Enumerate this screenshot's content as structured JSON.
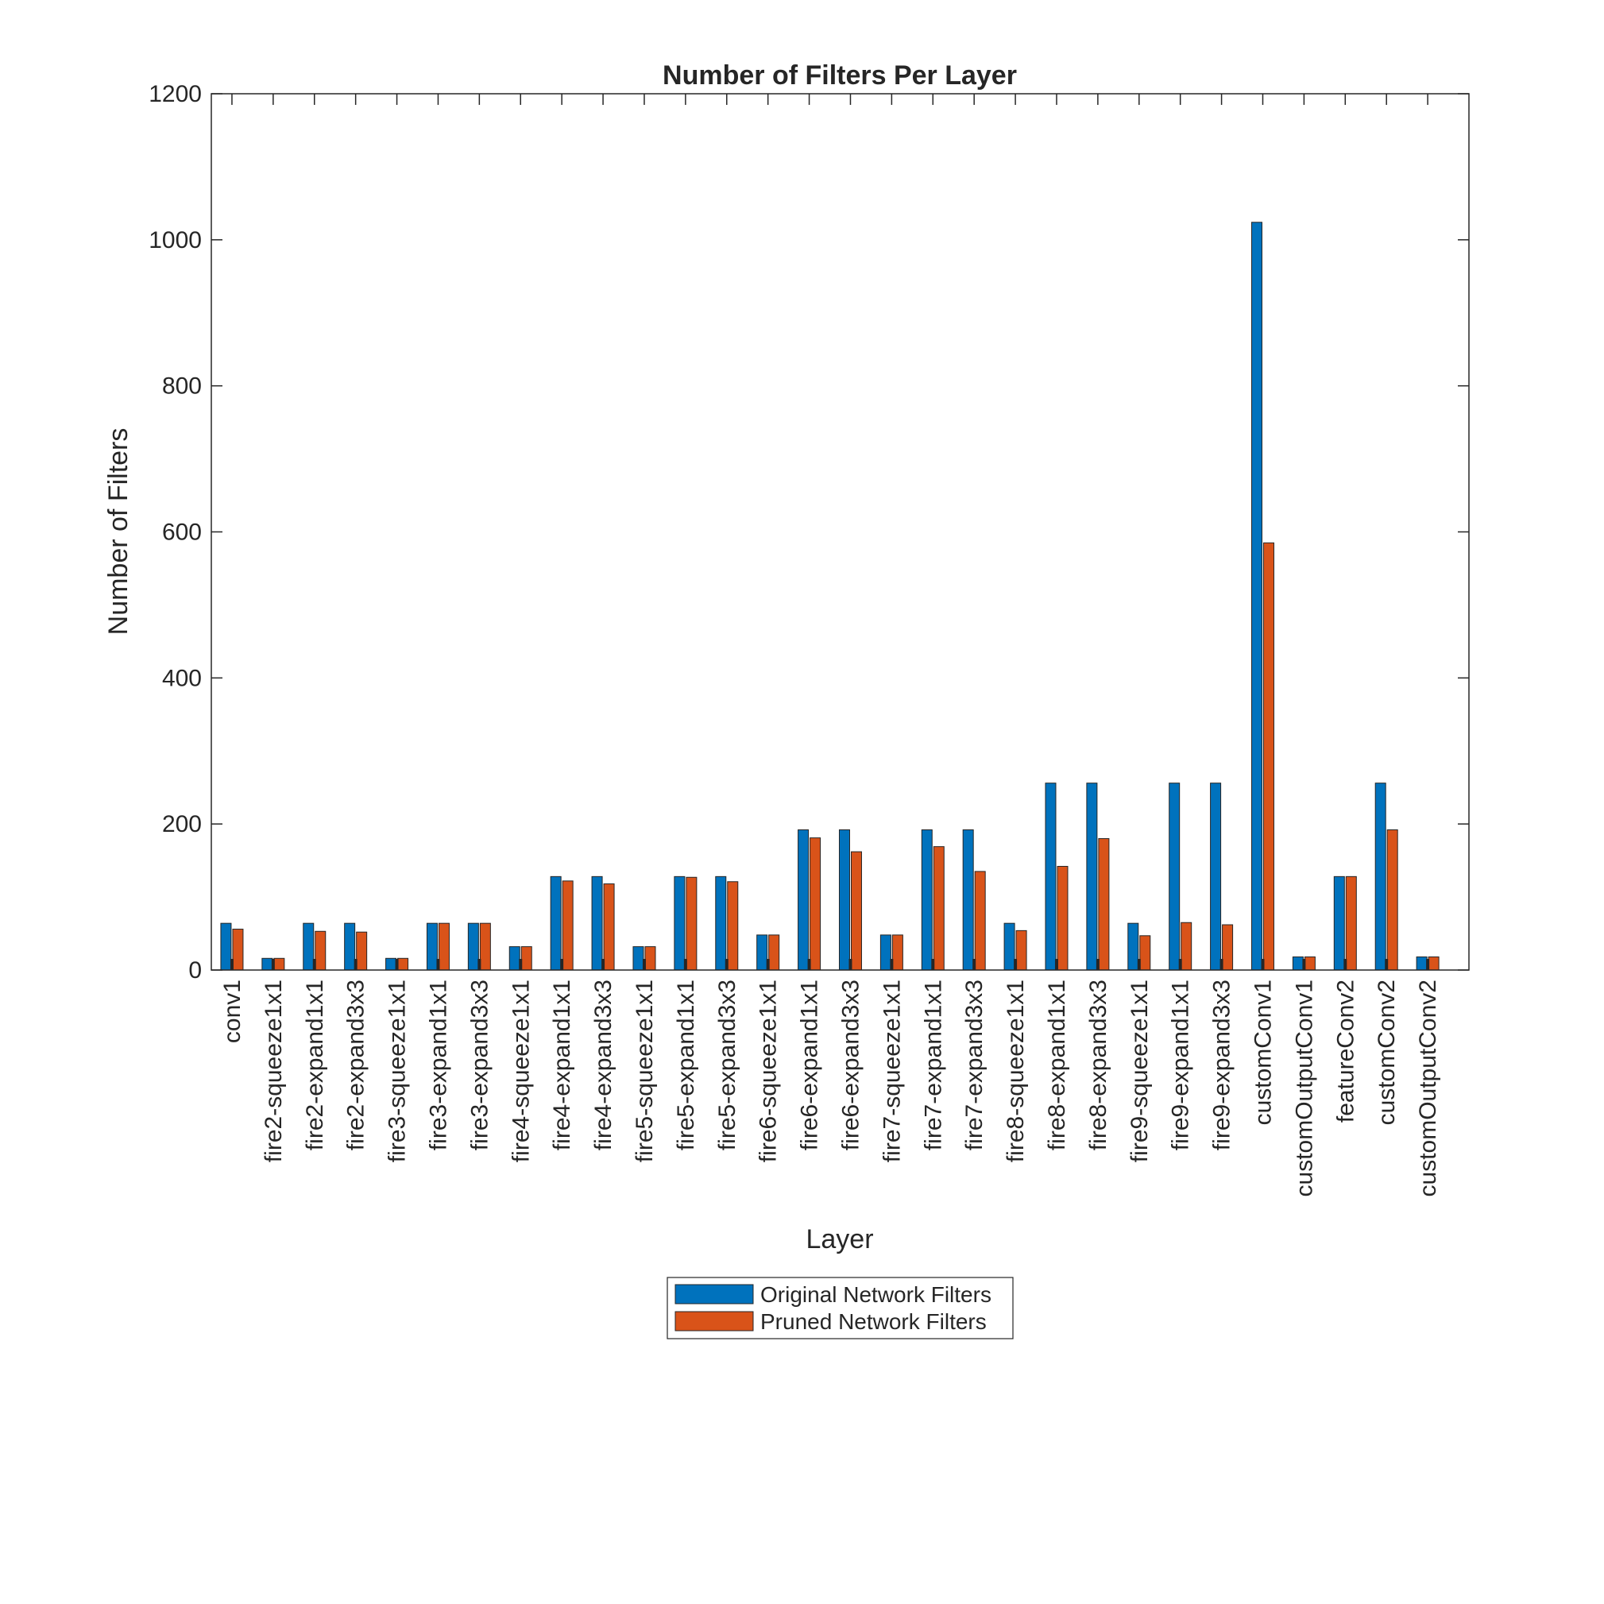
{
  "chart_data": {
    "type": "bar",
    "title": "Number of Filters Per Layer",
    "xlabel": "Layer",
    "ylabel": "Number of Filters",
    "ylim": [
      0,
      1200
    ],
    "yticks": [
      0,
      200,
      400,
      600,
      800,
      1000,
      1200
    ],
    "grid": false,
    "legend_position": "bottom-outside",
    "categories": [
      "conv1",
      "fire2-squeeze1x1",
      "fire2-expand1x1",
      "fire2-expand3x3",
      "fire3-squeeze1x1",
      "fire3-expand1x1",
      "fire3-expand3x3",
      "fire4-squeeze1x1",
      "fire4-expand1x1",
      "fire4-expand3x3",
      "fire5-squeeze1x1",
      "fire5-expand1x1",
      "fire5-expand3x3",
      "fire6-squeeze1x1",
      "fire6-expand1x1",
      "fire6-expand3x3",
      "fire7-squeeze1x1",
      "fire7-expand1x1",
      "fire7-expand3x3",
      "fire8-squeeze1x1",
      "fire8-expand1x1",
      "fire8-expand3x3",
      "fire9-squeeze1x1",
      "fire9-expand1x1",
      "fire9-expand3x3",
      "customConv1",
      "customOutputConv1",
      "featureConv2",
      "customConv2",
      "customOutputConv2"
    ],
    "series": [
      {
        "name": "Original Network Filters",
        "color": "#0072BD",
        "values": [
          64,
          16,
          64,
          64,
          16,
          64,
          64,
          32,
          128,
          128,
          32,
          128,
          128,
          48,
          192,
          192,
          48,
          192,
          192,
          64,
          256,
          256,
          64,
          256,
          256,
          1024,
          18,
          128,
          256,
          18
        ]
      },
      {
        "name": "Pruned Network Filters",
        "color": "#D95319",
        "values": [
          56,
          16,
          53,
          52,
          16,
          64,
          64,
          32,
          122,
          118,
          32,
          127,
          121,
          48,
          181,
          162,
          48,
          169,
          135,
          54,
          142,
          180,
          47,
          65,
          62,
          585,
          18,
          128,
          192,
          18
        ]
      }
    ]
  }
}
